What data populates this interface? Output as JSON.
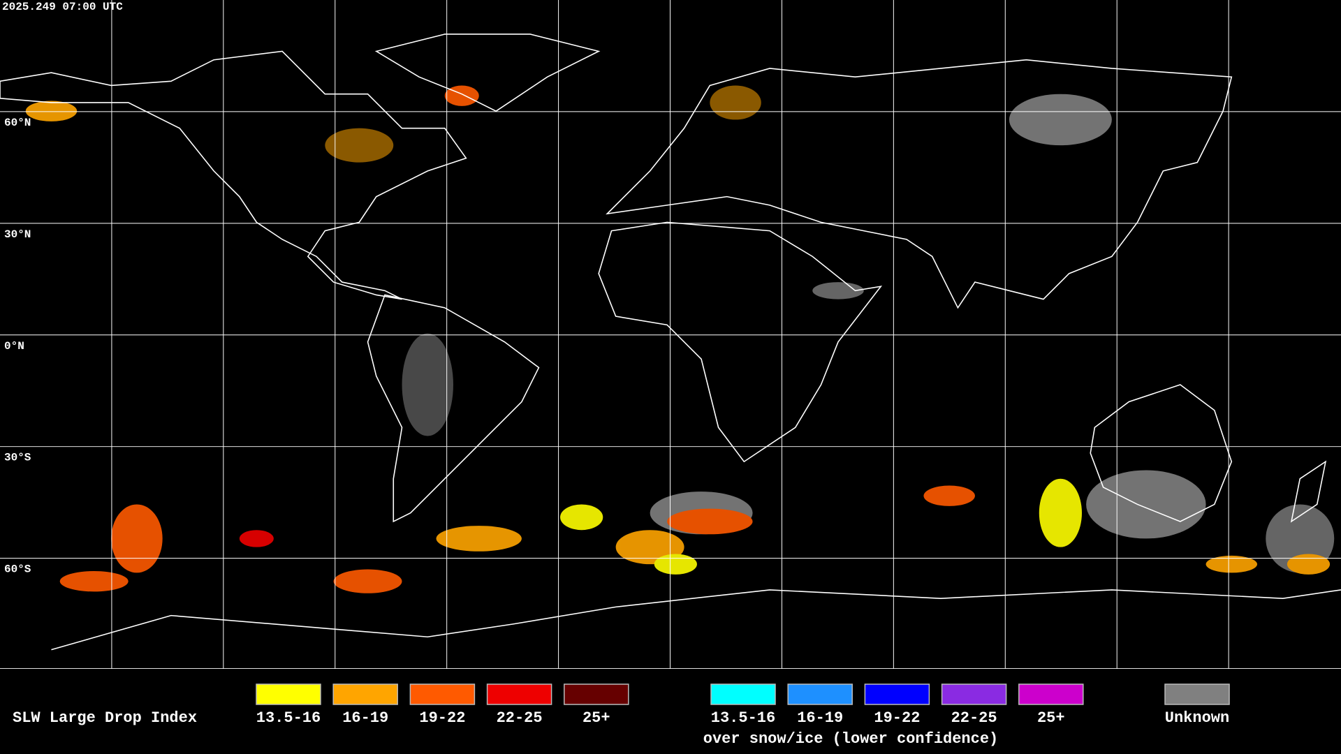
{
  "header": {
    "timestamp": "2025.249 07:00 UTC"
  },
  "map": {
    "lat_labels": [
      "60°N",
      "30°N",
      "0°N",
      "30°S",
      "60°S"
    ]
  },
  "legend": {
    "title": "SLW Large Drop Index",
    "items": [
      {
        "label": "13.5-16",
        "color": "#ffff00"
      },
      {
        "label": "16-19",
        "color": "#ffa500"
      },
      {
        "label": "19-22",
        "color": "#ff5a00"
      },
      {
        "label": "22-25",
        "color": "#ee0000"
      },
      {
        "label": "25+",
        "color": "#660000"
      }
    ],
    "snow_items": [
      {
        "label": "13.5-16",
        "color": "#00ffff"
      },
      {
        "label": "16-19",
        "color": "#1e90ff"
      },
      {
        "label": "19-22",
        "color": "#0000ff"
      },
      {
        "label": "22-25",
        "color": "#8a2be2"
      },
      {
        "label": "25+",
        "color": "#cc00cc"
      }
    ],
    "snow_note": "over snow/ice (lower confidence)",
    "unknown": {
      "label": "Unknown",
      "color": "#808080"
    }
  }
}
